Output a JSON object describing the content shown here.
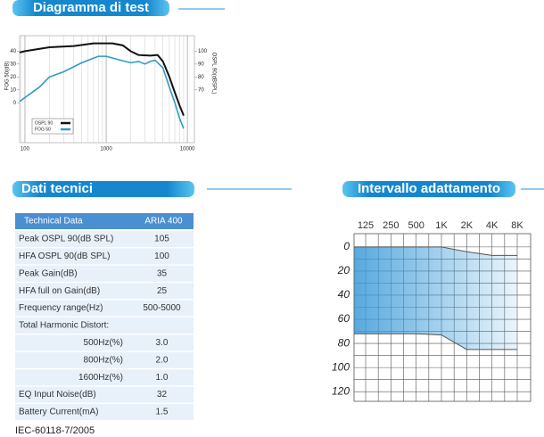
{
  "sections": {
    "test": "Diagramma di test",
    "tech": "Dati tecnici",
    "range": "Intervallo adattamento"
  },
  "table": {
    "header": [
      "Technical Data",
      "ARIA 400"
    ],
    "rows": [
      [
        "Peak OSPL 90(dB SPL)",
        "105"
      ],
      [
        "HFA OSPL 90(dB SPL)",
        "100"
      ],
      [
        "Peak Gain(dB)",
        "35"
      ],
      [
        "HFA  full on Gain(dB)",
        "25"
      ],
      [
        "Frequency range(Hz)",
        "500-5000"
      ],
      [
        "Total Harmonic Distort:"
      ],
      [
        "500Hz(%)",
        "3.0"
      ],
      [
        "800Hz(%)",
        "2.0"
      ],
      [
        "1600Hz(%)",
        "1.0"
      ],
      [
        "EQ Input Noise(dB)",
        "32"
      ],
      [
        "Battery Current(mA)",
        "1.5"
      ]
    ],
    "footer": "IEC-60118-7/2005"
  },
  "chart_data": [
    {
      "type": "line",
      "ylabel": "FOG 50(dB)",
      "y2label": "OSPL 90(dBSPL)",
      "xscale": "log",
      "xlim": [
        86,
        12200
      ],
      "xticks": [
        100,
        1000,
        10000
      ],
      "ylim": [
        -31,
        52
      ],
      "yticks": [
        0,
        10,
        20,
        30,
        40
      ],
      "y2lim": [
        29,
        112
      ],
      "y2ticks": [
        70,
        80,
        90,
        100
      ],
      "minor_grid": true,
      "legend": "lower left",
      "series": [
        {
          "name": "OSPL 90",
          "color": "#111111",
          "axis": "y2",
          "x": [
            86,
            100,
            200,
            400,
            700,
            1200,
            1600,
            2000,
            2500,
            3500,
            4300,
            5000,
            6000,
            7000,
            8000,
            9000
          ],
          "values": [
            99,
            100,
            103,
            104,
            106,
            106,
            104.5,
            100,
            97,
            96.5,
            97,
            92,
            80,
            68,
            58,
            50
          ]
        },
        {
          "name": "FOG 50",
          "color": "#2e9ac8",
          "x": [
            86,
            100,
            150,
            200,
            300,
            500,
            800,
            1000,
            1500,
            2000,
            2500,
            3000,
            3500,
            4000,
            5000,
            6000,
            7000,
            8000,
            9000
          ],
          "values": [
            1,
            4,
            12,
            20,
            24,
            31,
            36,
            36,
            33,
            31,
            32,
            30,
            32,
            33,
            27,
            12,
            0,
            -12,
            -20
          ]
        }
      ]
    },
    {
      "type": "range",
      "categories": [
        "125",
        "250",
        "500",
        "1K",
        "2K",
        "4K",
        "8K"
      ],
      "ylim": [
        -11,
        128
      ],
      "yticks": [
        0,
        20,
        40,
        60,
        80,
        100,
        120
      ],
      "inverted": true,
      "grid": true,
      "color": "#3a9ad9",
      "series": [
        {
          "color": "#555555",
          "values": [
            0,
            0,
            0,
            0,
            4,
            7,
            7
          ]
        },
        {
          "color": "#555555",
          "values": [
            72,
            72,
            72,
            73,
            85,
            85,
            85
          ]
        }
      ]
    }
  ]
}
